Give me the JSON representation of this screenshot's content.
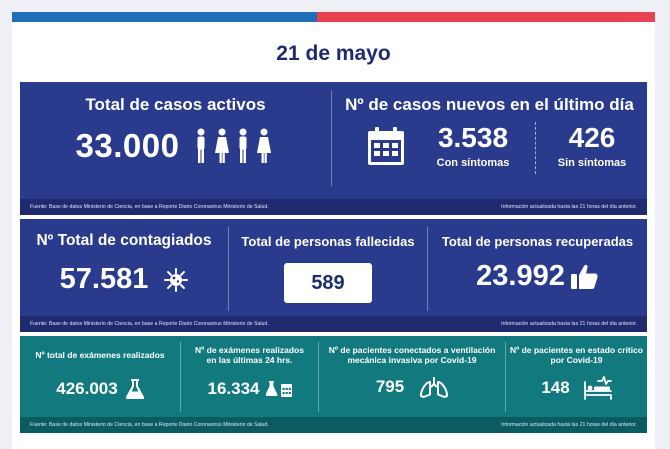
{
  "date": "21 de mayo",
  "top": {
    "active": {
      "title": "Total de casos activos",
      "value": "33.000"
    },
    "new": {
      "title": "Nº de casos nuevos en el último día",
      "with_symptoms": {
        "value": "3.538",
        "label": "Con síntomas"
      },
      "without_symptoms": {
        "value": "426",
        "label": "Sin síntomas"
      }
    },
    "source": "Fuente: Base de datos Ministerio de Ciencia, en base a Reporte Diario Coronavirus Ministerio de Salud.",
    "updated": "Información actualizada hasta las 21 horas  del día anterior."
  },
  "middle": {
    "infected": {
      "title": "Nº Total de contagiados",
      "value": "57.581"
    },
    "deceased": {
      "title": "Total de personas fallecidas",
      "value": "589"
    },
    "recovered": {
      "title": "Total de personas recuperadas",
      "value": "23.992"
    },
    "source": "Fuente: Base de datos Ministerio de Ciencia, en base a Reporte Diario Coronavirus Ministerio de Salud.",
    "updated": "Información actualizada hasta las 21 horas  del día anterior."
  },
  "bottom": {
    "exams_total": {
      "title": "Nº total de exámenes realizados",
      "value": "426.003"
    },
    "exams_24h": {
      "title_line1": "Nº de exámenes realizados",
      "title_line2": "en las últimas 24 hrs.",
      "value": "16.334"
    },
    "ventilation": {
      "title_line1": "Nº de pacientes conectados a ventilación",
      "title_line2": "mecánica invasiva por Covid-19",
      "value": "795"
    },
    "critical": {
      "title_line1": "Nº de pacientes en estado crítico",
      "title_line2": "por Covid-19",
      "value": "148"
    },
    "source": "Fuente: Base de datos Ministerio de Ciencia, en base a Reporte Diario Coronavirus Ministerio de Salud.",
    "updated": "Información actualizada hasta las 21 horas  del día anterior."
  },
  "icons": {
    "people": "people-icon",
    "calendar": "calendar-icon",
    "virus": "virus-icon",
    "thumbs_up": "thumbs-up-icon",
    "flask": "flask-icon",
    "lungs": "lungs-icon",
    "bed": "hospital-bed-icon"
  },
  "colors": {
    "navy": "#2a3a8c",
    "teal": "#127a7f",
    "date": "#1f2b6e",
    "red": "#e8414f",
    "blue": "#1f6fb8"
  }
}
